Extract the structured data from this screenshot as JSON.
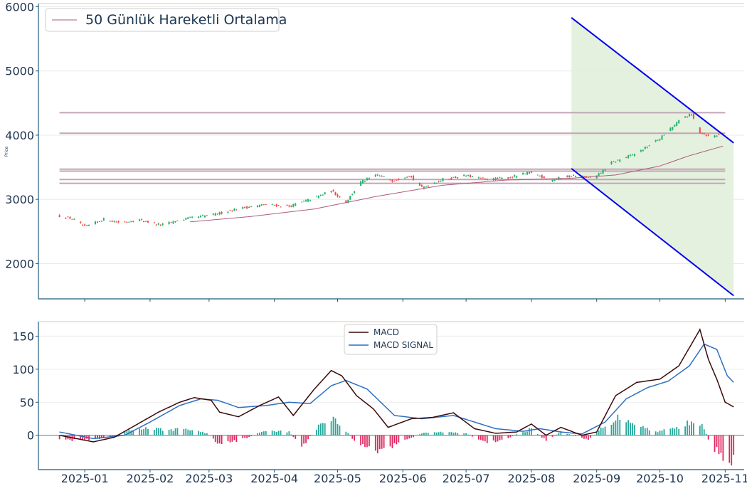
{
  "chart_data": [
    {
      "type": "candlestick",
      "ylabel": "Price",
      "ylim": [
        1450,
        6050
      ],
      "yticks": [
        2000,
        3000,
        4000,
        5000,
        6000
      ],
      "x_range": [
        "2024-12-10",
        "2025-11-10"
      ],
      "legend": {
        "placement": "top-left",
        "entries": [
          "50 Günlük Hareketli Ortalama"
        ]
      },
      "colors": {
        "up": "#26b36b",
        "down": "#ef4b4b",
        "ma": "#b05a80",
        "hline": "#c3a6b6",
        "channel": "#0000ee",
        "channel_fill": "#e1f0db",
        "axis": "#1f5b7a"
      },
      "horizontal_levels": [
        4350,
        4030,
        3470,
        3440,
        3310,
        3250
      ],
      "price_keypoints": [
        [
          "2024-12-20",
          2740
        ],
        [
          "2024-12-26",
          2700
        ],
        [
          "2025-01-01",
          2570
        ],
        [
          "2025-01-10",
          2690
        ],
        [
          "2025-01-18",
          2640
        ],
        [
          "2025-01-27",
          2680
        ],
        [
          "2025-02-06",
          2600
        ],
        [
          "2025-02-18",
          2700
        ],
        [
          "2025-03-03",
          2760
        ],
        [
          "2025-03-15",
          2860
        ],
        [
          "2025-03-28",
          2920
        ],
        [
          "2025-04-08",
          2890
        ],
        [
          "2025-04-18",
          3000
        ],
        [
          "2025-04-28",
          3130
        ],
        [
          "2025-05-05",
          2960
        ],
        [
          "2025-05-12",
          3270
        ],
        [
          "2025-05-20",
          3380
        ],
        [
          "2025-05-27",
          3290
        ],
        [
          "2025-06-04",
          3380
        ],
        [
          "2025-06-10",
          3180
        ],
        [
          "2025-06-20",
          3310
        ],
        [
          "2025-07-01",
          3370
        ],
        [
          "2025-07-10",
          3310
        ],
        [
          "2025-07-20",
          3330
        ],
        [
          "2025-08-01",
          3420
        ],
        [
          "2025-08-10",
          3300
        ],
        [
          "2025-08-20",
          3370
        ],
        [
          "2025-08-31",
          3330
        ],
        [
          "2025-09-08",
          3570
        ],
        [
          "2025-09-20",
          3720
        ],
        [
          "2025-10-01",
          3950
        ],
        [
          "2025-10-12",
          4280
        ],
        [
          "2025-10-16",
          4320
        ],
        [
          "2025-10-20",
          4050
        ],
        [
          "2025-10-25",
          3970
        ],
        [
          "2025-10-29",
          4010
        ]
      ],
      "moving_average_keypoints": [
        [
          "2025-02-20",
          2650
        ],
        [
          "2025-03-20",
          2730
        ],
        [
          "2025-04-20",
          2850
        ],
        [
          "2025-05-20",
          3050
        ],
        [
          "2025-06-20",
          3220
        ],
        [
          "2025-07-20",
          3300
        ],
        [
          "2025-08-20",
          3330
        ],
        [
          "2025-09-10",
          3380
        ],
        [
          "2025-10-01",
          3520
        ],
        [
          "2025-10-15",
          3680
        ],
        [
          "2025-10-31",
          3830
        ]
      ],
      "channel": {
        "upper": [
          [
            "2025-08-20",
            5830
          ],
          [
            "2025-11-05",
            3880
          ]
        ],
        "lower": [
          [
            "2025-08-20",
            3480
          ],
          [
            "2025-11-05",
            1500
          ]
        ]
      }
    },
    {
      "type": "line",
      "ylim": [
        -52,
        172
      ],
      "yticks": [
        0,
        50,
        100,
        150
      ],
      "x_range": [
        "2024-12-10",
        "2025-11-10"
      ],
      "xticks": [
        "2025-01",
        "2025-02",
        "2025-03",
        "2025-04",
        "2025-05",
        "2025-06",
        "2025-07",
        "2025-08",
        "2025-09",
        "2025-10",
        "2025-11"
      ],
      "legend": {
        "placement": "top-center",
        "entries": [
          "MACD",
          "MACD SIGNAL"
        ]
      },
      "colors": {
        "macd": "#3b0a0a",
        "signal": "#2f6fc2",
        "hist_up": "#26a69a",
        "hist_down": "#e0245e",
        "axis": "#1f5b7a"
      },
      "series": [
        {
          "name": "MACD",
          "keypoints": [
            [
              "2024-12-20",
              0
            ],
            [
              "2024-12-28",
              -5
            ],
            [
              "2025-01-05",
              -10
            ],
            [
              "2025-01-15",
              -3
            ],
            [
              "2025-01-25",
              15
            ],
            [
              "2025-02-05",
              35
            ],
            [
              "2025-02-15",
              50
            ],
            [
              "2025-02-22",
              57
            ],
            [
              "2025-03-02",
              53
            ],
            [
              "2025-03-06",
              35
            ],
            [
              "2025-03-15",
              28
            ],
            [
              "2025-03-25",
              45
            ],
            [
              "2025-04-03",
              58
            ],
            [
              "2025-04-10",
              30
            ],
            [
              "2025-04-20",
              70
            ],
            [
              "2025-04-28",
              98
            ],
            [
              "2025-05-03",
              90
            ],
            [
              "2025-05-10",
              60
            ],
            [
              "2025-05-18",
              40
            ],
            [
              "2025-05-25",
              12
            ],
            [
              "2025-06-05",
              25
            ],
            [
              "2025-06-15",
              27
            ],
            [
              "2025-06-25",
              34
            ],
            [
              "2025-07-05",
              10
            ],
            [
              "2025-07-15",
              3
            ],
            [
              "2025-07-25",
              5
            ],
            [
              "2025-08-01",
              17
            ],
            [
              "2025-08-08",
              0
            ],
            [
              "2025-08-15",
              12
            ],
            [
              "2025-08-25",
              0
            ],
            [
              "2025-09-01",
              5
            ],
            [
              "2025-09-10",
              60
            ],
            [
              "2025-09-20",
              80
            ],
            [
              "2025-10-01",
              85
            ],
            [
              "2025-10-10",
              105
            ],
            [
              "2025-10-20",
              160
            ],
            [
              "2025-10-24",
              115
            ],
            [
              "2025-10-28",
              85
            ],
            [
              "2025-11-01",
              50
            ],
            [
              "2025-11-05",
              43
            ]
          ]
        },
        {
          "name": "MACD SIGNAL",
          "keypoints": [
            [
              "2024-12-20",
              5
            ],
            [
              "2025-01-05",
              -5
            ],
            [
              "2025-01-20",
              0
            ],
            [
              "2025-02-01",
              20
            ],
            [
              "2025-02-15",
              45
            ],
            [
              "2025-02-25",
              55
            ],
            [
              "2025-03-05",
              53
            ],
            [
              "2025-03-15",
              42
            ],
            [
              "2025-03-28",
              45
            ],
            [
              "2025-04-08",
              50
            ],
            [
              "2025-04-18",
              48
            ],
            [
              "2025-04-28",
              75
            ],
            [
              "2025-05-05",
              83
            ],
            [
              "2025-05-15",
              70
            ],
            [
              "2025-05-28",
              30
            ],
            [
              "2025-06-10",
              25
            ],
            [
              "2025-06-25",
              30
            ],
            [
              "2025-07-05",
              20
            ],
            [
              "2025-07-15",
              10
            ],
            [
              "2025-07-28",
              6
            ],
            [
              "2025-08-05",
              10
            ],
            [
              "2025-08-15",
              5
            ],
            [
              "2025-08-25",
              2
            ],
            [
              "2025-09-05",
              20
            ],
            [
              "2025-09-15",
              55
            ],
            [
              "2025-09-25",
              72
            ],
            [
              "2025-10-05",
              82
            ],
            [
              "2025-10-15",
              105
            ],
            [
              "2025-10-22",
              138
            ],
            [
              "2025-10-28",
              130
            ],
            [
              "2025-11-02",
              90
            ],
            [
              "2025-11-05",
              80
            ]
          ]
        }
      ],
      "histogram_keypoints": [
        [
          "2024-12-20",
          -8
        ],
        [
          "2025-01-03",
          -6
        ],
        [
          "2025-01-12",
          -4
        ],
        [
          "2025-01-20",
          5
        ],
        [
          "2025-01-28",
          11
        ],
        [
          "2025-02-10",
          8
        ],
        [
          "2025-02-18",
          10
        ],
        [
          "2025-02-28",
          3
        ],
        [
          "2025-03-06",
          -15
        ],
        [
          "2025-03-18",
          -5
        ],
        [
          "2025-03-28",
          8
        ],
        [
          "2025-04-08",
          5
        ],
        [
          "2025-04-14",
          -18
        ],
        [
          "2025-04-22",
          15
        ],
        [
          "2025-04-28",
          28
        ],
        [
          "2025-05-04",
          10
        ],
        [
          "2025-05-10",
          -12
        ],
        [
          "2025-05-20",
          -25
        ],
        [
          "2025-05-28",
          -15
        ],
        [
          "2025-06-10",
          3
        ],
        [
          "2025-06-20",
          5
        ],
        [
          "2025-07-01",
          3
        ],
        [
          "2025-07-10",
          -12
        ],
        [
          "2025-07-20",
          -5
        ],
        [
          "2025-08-01",
          10
        ],
        [
          "2025-08-08",
          -8
        ],
        [
          "2025-08-15",
          5
        ],
        [
          "2025-08-28",
          -6
        ],
        [
          "2025-09-05",
          15
        ],
        [
          "2025-09-12",
          28
        ],
        [
          "2025-09-20",
          18
        ],
        [
          "2025-09-28",
          5
        ],
        [
          "2025-10-10",
          12
        ],
        [
          "2025-10-18",
          25
        ],
        [
          "2025-10-22",
          10
        ],
        [
          "2025-10-25",
          -15
        ],
        [
          "2025-11-01",
          -35
        ],
        [
          "2025-11-05",
          -38
        ]
      ]
    }
  ]
}
